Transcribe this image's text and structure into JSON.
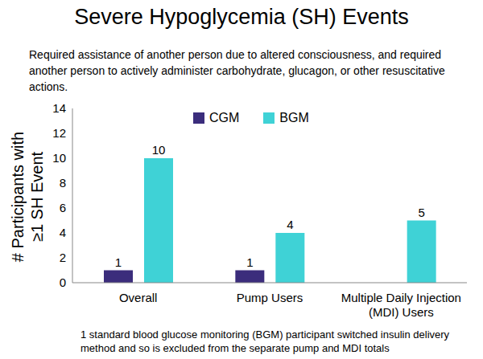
{
  "chart_data": {
    "type": "bar",
    "title": "Severe Hypoglycemia (SH) Events",
    "subtitle": "Required assistance of another person due to altered consciousness, and required another person to actively administer carbohydrate, glucagon, or other resuscitative actions.",
    "y_label": "# Participants with ≥1 SH Event",
    "annotations": [
      "1 standard blood glucose monitoring (BGM) participant switched insulin delivery method and so is excluded from the separate pump and MDI totals"
    ],
    "categories": [
      "Overall",
      "Pump Users",
      "Multiple Daily Injection (MDI) Users"
    ],
    "series": [
      {
        "name": "CGM",
        "color": "#3b2d7c",
        "values": [
          1,
          1,
          0
        ]
      },
      {
        "name": "BGM",
        "color": "#3fd2d6",
        "values": [
          10,
          4,
          5
        ]
      }
    ],
    "ylim": [
      0,
      14
    ],
    "yticks": [
      0,
      2,
      4,
      6,
      8,
      10,
      12,
      14
    ],
    "grid": false,
    "legend": "top",
    "data_labels": true
  }
}
